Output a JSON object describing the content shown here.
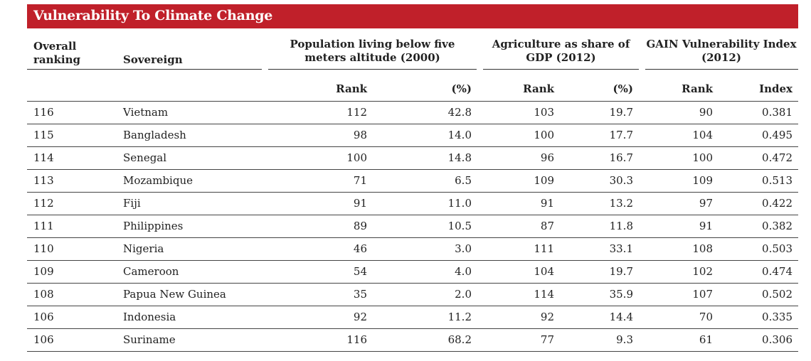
{
  "title": "Vulnerability To Climate Change",
  "colors": {
    "title_bar": "#c0202a"
  },
  "headers": {
    "overall": "Overall ranking",
    "sovereign": "Sovereign",
    "population": "Population living below five meters altitude (2000)",
    "agriculture": "Agriculture as share of GDP (2012)",
    "gain": "GAIN Vulnerability Index (2012)",
    "sub": [
      "Rank",
      "(%)",
      "Rank",
      "(%)",
      "Rank",
      "Index"
    ]
  },
  "rows": [
    [
      "116",
      "Vietnam",
      "112",
      "42.8",
      "103",
      "19.7",
      "90",
      "0.381"
    ],
    [
      "115",
      "Bangladesh",
      "98",
      "14.0",
      "100",
      "17.7",
      "104",
      "0.495"
    ],
    [
      "114",
      "Senegal",
      "100",
      "14.8",
      "96",
      "16.7",
      "100",
      "0.472"
    ],
    [
      "113",
      "Mozambique",
      "71",
      "6.5",
      "109",
      "30.3",
      "109",
      "0.513"
    ],
    [
      "112",
      "Fiji",
      "91",
      "11.0",
      "91",
      "13.2",
      "97",
      "0.422"
    ],
    [
      "111",
      "Philippines",
      "89",
      "10.5",
      "87",
      "11.8",
      "91",
      "0.382"
    ],
    [
      "110",
      "Nigeria",
      "46",
      "3.0",
      "111",
      "33.1",
      "108",
      "0.503"
    ],
    [
      "109",
      "Cameroon",
      "54",
      "4.0",
      "104",
      "19.7",
      "102",
      "0.474"
    ],
    [
      "108",
      "Papua New Guinea",
      "35",
      "2.0",
      "114",
      "35.9",
      "107",
      "0.502"
    ],
    [
      "106",
      "Indonesia",
      "92",
      "11.2",
      "92",
      "14.4",
      "70",
      "0.335"
    ],
    [
      "106",
      "Suriname",
      "116",
      "68.2",
      "77",
      "9.3",
      "61",
      "0.306"
    ]
  ]
}
